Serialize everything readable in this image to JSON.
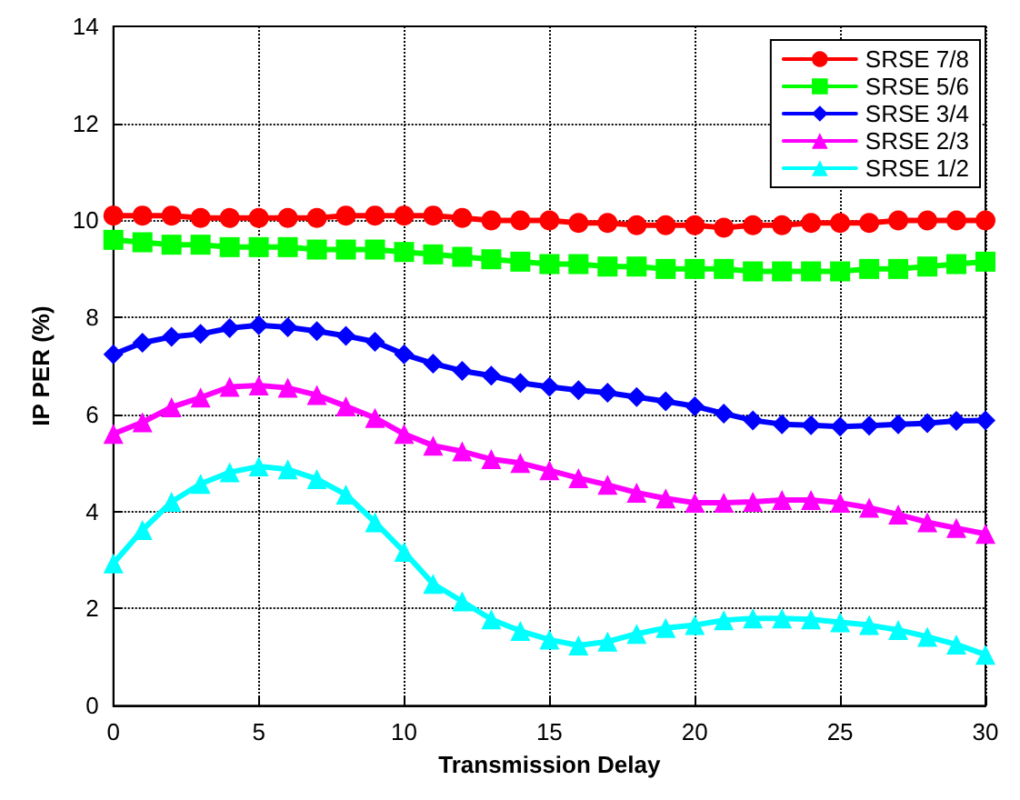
{
  "chart_data": {
    "type": "line",
    "xlabel": "Transmission Delay",
    "ylabel": "IP PER (%)",
    "x": [
      0,
      1,
      2,
      3,
      4,
      5,
      6,
      7,
      8,
      9,
      10,
      11,
      12,
      13,
      14,
      15,
      16,
      17,
      18,
      19,
      20,
      21,
      22,
      23,
      24,
      25,
      26,
      27,
      28,
      29,
      30
    ],
    "xlim": [
      0,
      30
    ],
    "xticks": [
      0,
      5,
      10,
      15,
      20,
      25,
      30
    ],
    "ylim": [
      0,
      14
    ],
    "yticks": [
      0,
      2,
      4,
      6,
      8,
      10,
      12,
      14
    ],
    "grid": true,
    "legend": "top right",
    "line_style": "solid",
    "series": [
      {
        "name": "SRSE 7/8",
        "color": "#ff0000",
        "marker": "circle",
        "values": [
          10.1,
          10.1,
          10.1,
          10.05,
          10.05,
          10.05,
          10.05,
          10.05,
          10.1,
          10.1,
          10.1,
          10.1,
          10.05,
          10.0,
          10.0,
          10.0,
          9.95,
          9.95,
          9.9,
          9.9,
          9.9,
          9.85,
          9.9,
          9.9,
          9.95,
          9.95,
          9.95,
          10.0,
          10.0,
          10.0,
          10.0
        ]
      },
      {
        "name": "SRSE 5/6",
        "color": "#00ff00",
        "marker": "square",
        "values": [
          9.6,
          9.55,
          9.5,
          9.5,
          9.45,
          9.45,
          9.45,
          9.4,
          9.4,
          9.4,
          9.35,
          9.3,
          9.25,
          9.2,
          9.15,
          9.1,
          9.1,
          9.05,
          9.05,
          9.0,
          9.0,
          9.0,
          8.95,
          8.95,
          8.95,
          8.95,
          9.0,
          9.0,
          9.05,
          9.1,
          9.15
        ]
      },
      {
        "name": "SRSE 3/4",
        "color": "#0000ff",
        "marker": "diamond",
        "values": [
          7.24,
          7.48,
          7.6,
          7.66,
          7.78,
          7.84,
          7.8,
          7.72,
          7.62,
          7.5,
          7.24,
          7.05,
          6.9,
          6.8,
          6.65,
          6.57,
          6.5,
          6.45,
          6.36,
          6.27,
          6.17,
          6.02,
          5.88,
          5.8,
          5.78,
          5.75,
          5.77,
          5.8,
          5.82,
          5.87,
          5.88
        ]
      },
      {
        "name": "SRSE 2/3",
        "color": "#ff00ff",
        "marker": "triangle",
        "values": [
          5.6,
          5.84,
          6.15,
          6.35,
          6.57,
          6.6,
          6.55,
          6.4,
          6.17,
          5.93,
          5.6,
          5.36,
          5.24,
          5.08,
          5.0,
          4.85,
          4.69,
          4.55,
          4.39,
          4.27,
          4.18,
          4.18,
          4.2,
          4.24,
          4.24,
          4.18,
          4.08,
          3.94,
          3.78,
          3.66,
          3.54
        ]
      },
      {
        "name": "SRSE 1/2",
        "color": "#00ffff",
        "marker": "triangle",
        "values": [
          2.93,
          3.62,
          4.2,
          4.57,
          4.81,
          4.93,
          4.87,
          4.67,
          4.35,
          3.78,
          3.17,
          2.51,
          2.15,
          1.78,
          1.54,
          1.36,
          1.24,
          1.32,
          1.48,
          1.6,
          1.66,
          1.76,
          1.8,
          1.8,
          1.78,
          1.72,
          1.66,
          1.56,
          1.42,
          1.26,
          1.05
        ]
      }
    ]
  }
}
